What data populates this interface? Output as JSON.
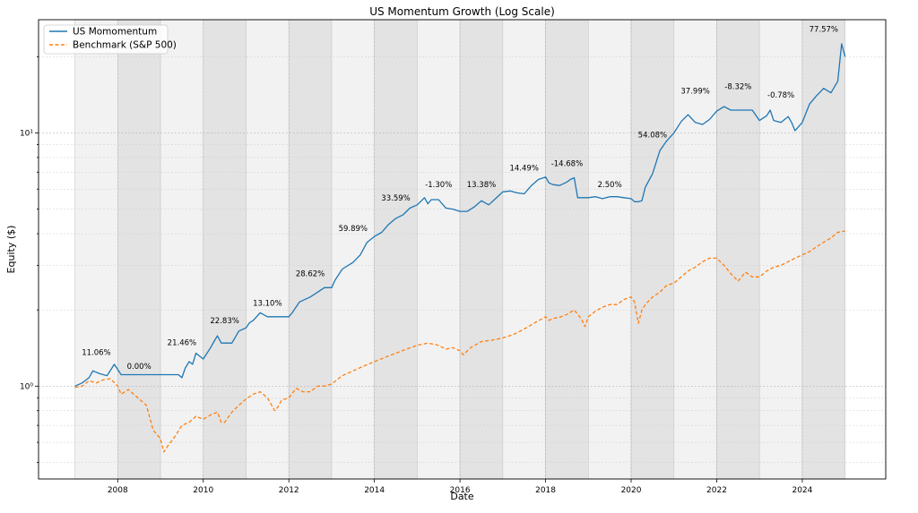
{
  "chart_data": {
    "type": "line",
    "title": "US Momentum Growth (Log Scale)",
    "xlabel": "Date",
    "ylabel": "Equity ($)",
    "y_scale": "log",
    "ylim": [
      0.43,
      28
    ],
    "xlim": [
      2006.15,
      2025.95
    ],
    "x_ticks": [
      2008,
      2010,
      2012,
      2014,
      2016,
      2018,
      2020,
      2022,
      2024
    ],
    "x_tick_labels": [
      "2008",
      "2010",
      "2012",
      "2014",
      "2016",
      "2018",
      "2020",
      "2022",
      "2024"
    ],
    "y_ticks": [
      1,
      10
    ],
    "y_tick_labels": [
      "10⁰",
      "10¹"
    ],
    "grid": true,
    "legend_position": "top-left",
    "year_bands": {
      "light_color": "#f2f2f2",
      "dark_color": "#e3e3e3",
      "years": [
        2007,
        2008,
        2009,
        2010,
        2011,
        2012,
        2013,
        2014,
        2015,
        2016,
        2017,
        2018,
        2019,
        2020,
        2021,
        2022,
        2023,
        2024
      ]
    },
    "annotations": [
      {
        "text": "11.06%",
        "x": 2007.5,
        "y": 1.33
      },
      {
        "text": "0.00%",
        "x": 2008.5,
        "y": 1.17
      },
      {
        "text": "21.46%",
        "x": 2009.5,
        "y": 1.45
      },
      {
        "text": "22.83%",
        "x": 2010.5,
        "y": 1.77
      },
      {
        "text": "13.10%",
        "x": 2011.5,
        "y": 2.08
      },
      {
        "text": "28.62%",
        "x": 2012.5,
        "y": 2.72
      },
      {
        "text": "59.89%",
        "x": 2013.5,
        "y": 4.1
      },
      {
        "text": "33.59%",
        "x": 2014.5,
        "y": 5.4
      },
      {
        "text": "-1.30%",
        "x": 2015.5,
        "y": 6.1
      },
      {
        "text": "13.38%",
        "x": 2016.5,
        "y": 6.1
      },
      {
        "text": "14.49%",
        "x": 2017.5,
        "y": 7.1
      },
      {
        "text": "-14.68%",
        "x": 2018.5,
        "y": 7.4
      },
      {
        "text": "2.50%",
        "x": 2019.5,
        "y": 6.1
      },
      {
        "text": "54.08%",
        "x": 2020.5,
        "y": 9.6
      },
      {
        "text": "37.99%",
        "x": 2021.5,
        "y": 14.3
      },
      {
        "text": "-8.32%",
        "x": 2022.5,
        "y": 14.9
      },
      {
        "text": "-0.78%",
        "x": 2023.5,
        "y": 13.8
      },
      {
        "text": "77.57%",
        "x": 2024.5,
        "y": 25.1
      }
    ],
    "series": [
      {
        "name": "US Momomentum",
        "color": "#1f77b4",
        "line_style": "solid",
        "x": [
          2007.0,
          2007.17,
          2007.33,
          2007.42,
          2007.58,
          2007.75,
          2007.92,
          2008.08,
          2008.5,
          2009.0,
          2009.42,
          2009.5,
          2009.58,
          2009.67,
          2009.75,
          2009.83,
          2010.0,
          2010.17,
          2010.25,
          2010.33,
          2010.42,
          2010.5,
          2010.67,
          2010.83,
          2011.0,
          2011.08,
          2011.17,
          2011.33,
          2011.5,
          2011.67,
          2011.83,
          2012.0,
          2012.08,
          2012.25,
          2012.5,
          2012.67,
          2012.83,
          2013.0,
          2013.08,
          2013.25,
          2013.5,
          2013.67,
          2013.83,
          2014.0,
          2014.17,
          2014.33,
          2014.5,
          2014.67,
          2014.83,
          2015.0,
          2015.17,
          2015.25,
          2015.33,
          2015.5,
          2015.67,
          2015.83,
          2016.0,
          2016.17,
          2016.33,
          2016.5,
          2016.67,
          2016.83,
          2017.0,
          2017.17,
          2017.33,
          2017.5,
          2017.67,
          2017.83,
          2018.0,
          2018.08,
          2018.17,
          2018.33,
          2018.5,
          2018.58,
          2018.67,
          2018.75,
          2019.0,
          2019.17,
          2019.33,
          2019.5,
          2019.67,
          2019.83,
          2020.0,
          2020.08,
          2020.17,
          2020.25,
          2020.33,
          2020.5,
          2020.67,
          2020.83,
          2021.0,
          2021.17,
          2021.33,
          2021.5,
          2021.67,
          2021.83,
          2022.0,
          2022.17,
          2022.33,
          2022.5,
          2022.67,
          2022.83,
          2023.0,
          2023.17,
          2023.25,
          2023.33,
          2023.5,
          2023.67,
          2023.75,
          2023.83,
          2024.0,
          2024.17,
          2024.33,
          2024.5,
          2024.67,
          2024.83,
          2024.92,
          2025.0
        ],
        "values": [
          1.0,
          1.03,
          1.08,
          1.15,
          1.12,
          1.1,
          1.22,
          1.11,
          1.11,
          1.11,
          1.11,
          1.08,
          1.18,
          1.25,
          1.22,
          1.35,
          1.28,
          1.42,
          1.5,
          1.58,
          1.48,
          1.48,
          1.48,
          1.65,
          1.7,
          1.78,
          1.82,
          1.95,
          1.88,
          1.88,
          1.88,
          1.88,
          1.95,
          2.15,
          2.25,
          2.35,
          2.45,
          2.45,
          2.62,
          2.9,
          3.08,
          3.3,
          3.7,
          3.9,
          4.05,
          4.35,
          4.6,
          4.75,
          5.05,
          5.2,
          5.55,
          5.25,
          5.45,
          5.45,
          5.05,
          5.0,
          4.9,
          4.9,
          5.1,
          5.4,
          5.2,
          5.5,
          5.85,
          5.9,
          5.8,
          5.75,
          6.2,
          6.55,
          6.7,
          6.35,
          6.25,
          6.2,
          6.4,
          6.55,
          6.65,
          5.55,
          5.55,
          5.6,
          5.5,
          5.6,
          5.6,
          5.55,
          5.5,
          5.35,
          5.35,
          5.4,
          6.1,
          6.9,
          8.5,
          9.3,
          10.0,
          11.1,
          11.8,
          11.0,
          10.8,
          11.3,
          12.2,
          12.7,
          12.3,
          12.3,
          12.3,
          12.3,
          11.2,
          11.7,
          12.3,
          11.2,
          11.0,
          11.6,
          11.0,
          10.2,
          11.0,
          13.0,
          14.0,
          15.0,
          14.4,
          16.0,
          22.5,
          20.0
        ]
      },
      {
        "name": "Benchmark (S&P 500)",
        "color": "#ff7f0e",
        "line_style": "dashed",
        "x": [
          2007.0,
          2007.17,
          2007.33,
          2007.5,
          2007.67,
          2007.83,
          2008.0,
          2008.08,
          2008.25,
          2008.5,
          2008.67,
          2008.83,
          2009.0,
          2009.08,
          2009.17,
          2009.33,
          2009.5,
          2009.67,
          2009.83,
          2010.0,
          2010.17,
          2010.33,
          2010.42,
          2010.5,
          2010.67,
          2010.83,
          2011.0,
          2011.17,
          2011.33,
          2011.5,
          2011.67,
          2011.75,
          2011.83,
          2012.0,
          2012.17,
          2012.33,
          2012.5,
          2012.67,
          2012.83,
          2013.0,
          2013.25,
          2013.5,
          2013.75,
          2014.0,
          2014.25,
          2014.5,
          2014.75,
          2015.0,
          2015.25,
          2015.5,
          2015.67,
          2015.83,
          2016.0,
          2016.08,
          2016.25,
          2016.5,
          2016.75,
          2017.0,
          2017.25,
          2017.5,
          2017.75,
          2018.0,
          2018.08,
          2018.17,
          2018.33,
          2018.5,
          2018.67,
          2018.83,
          2018.92,
          2019.0,
          2019.17,
          2019.33,
          2019.5,
          2019.67,
          2019.83,
          2020.0,
          2020.08,
          2020.17,
          2020.25,
          2020.33,
          2020.5,
          2020.67,
          2020.83,
          2021.0,
          2021.17,
          2021.33,
          2021.5,
          2021.67,
          2021.83,
          2022.0,
          2022.17,
          2022.33,
          2022.5,
          2022.67,
          2022.83,
          2023.0,
          2023.17,
          2023.33,
          2023.5,
          2023.67,
          2023.83,
          2024.0,
          2024.17,
          2024.33,
          2024.5,
          2024.67,
          2024.83,
          2025.0
        ],
        "values": [
          0.99,
          1.0,
          1.05,
          1.03,
          1.06,
          1.07,
          1.0,
          0.93,
          0.97,
          0.89,
          0.84,
          0.67,
          0.62,
          0.55,
          0.58,
          0.63,
          0.7,
          0.72,
          0.76,
          0.74,
          0.77,
          0.79,
          0.72,
          0.72,
          0.79,
          0.84,
          0.89,
          0.93,
          0.95,
          0.9,
          0.8,
          0.83,
          0.88,
          0.9,
          0.98,
          0.95,
          0.95,
          1.0,
          1.0,
          1.02,
          1.1,
          1.15,
          1.2,
          1.25,
          1.3,
          1.35,
          1.4,
          1.45,
          1.48,
          1.45,
          1.4,
          1.42,
          1.38,
          1.33,
          1.42,
          1.5,
          1.52,
          1.55,
          1.6,
          1.68,
          1.78,
          1.88,
          1.82,
          1.85,
          1.87,
          1.92,
          2.0,
          1.85,
          1.72,
          1.88,
          1.98,
          2.05,
          2.1,
          2.1,
          2.2,
          2.25,
          2.15,
          1.77,
          2.0,
          2.1,
          2.25,
          2.35,
          2.5,
          2.55,
          2.7,
          2.85,
          2.95,
          3.1,
          3.2,
          3.2,
          3.0,
          2.78,
          2.6,
          2.82,
          2.7,
          2.7,
          2.85,
          2.95,
          3.0,
          3.1,
          3.2,
          3.3,
          3.4,
          3.55,
          3.7,
          3.85,
          4.05,
          4.1
        ]
      }
    ]
  }
}
